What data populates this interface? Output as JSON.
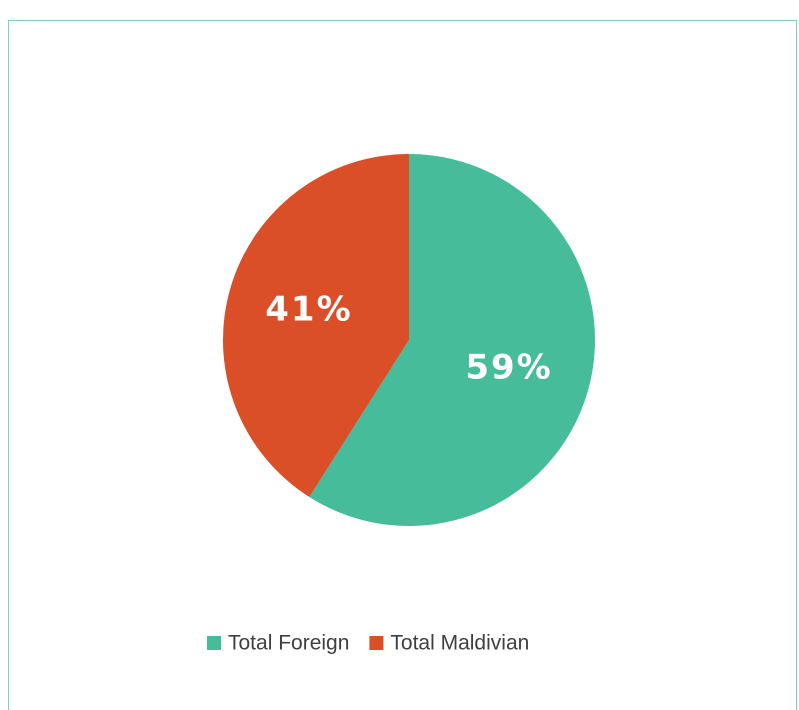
{
  "chart_data": {
    "type": "pie",
    "categories": [
      "Total Foreign",
      "Total Maldivian"
    ],
    "values": [
      59,
      41
    ],
    "value_labels": [
      "59%",
      "41%"
    ],
    "colors": [
      "#46bc9a",
      "#db4f28"
    ],
    "legend": "bottom"
  }
}
